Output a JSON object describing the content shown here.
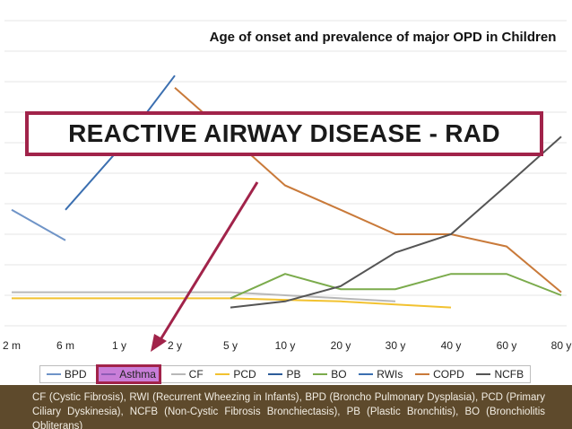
{
  "title": "Age of onset and prevalence of major OPD in Children",
  "callout": {
    "text": "REACTIVE AIRWAY DISEASE - RAD",
    "highlighted_series": "Asthma"
  },
  "footnote": "CF (Cystic Fibrosis), RWI (Recurrent Wheezing in Infants), BPD (Broncho Pulmonary Dysplasia), PCD (Primary Ciliary Dyskinesia), NCFB (Non-Cystic Fibrosis Bronchiectasis), PB (Plastic Bronchitis), BO (Bronchiolitis Obliterans)",
  "colors": {
    "accent": "#a1234a",
    "highlight": "#c97ed8",
    "footer_bg": "#5e4a2c"
  },
  "chart_data": {
    "type": "line",
    "categories": [
      "2 m",
      "6 m",
      "1 y",
      "2 y",
      "5 y",
      "10 y",
      "20 y",
      "30 y",
      "40 y",
      "60 y",
      "80 y"
    ],
    "grid": true,
    "legend_position": "bottom",
    "series": [
      {
        "name": "BPD",
        "color": "#6f94c7",
        "values": [
          38,
          28,
          null,
          null,
          null,
          null,
          null,
          null,
          null,
          null,
          null
        ]
      },
      {
        "name": "Asthma",
        "color": "#8e5cb5",
        "values": [
          null,
          null,
          null,
          null,
          null,
          null,
          null,
          null,
          null,
          null,
          null
        ]
      },
      {
        "name": "CF",
        "color": "#b8b8b8",
        "values": [
          11,
          11,
          11,
          11,
          11,
          10,
          9,
          8,
          null,
          null,
          null
        ]
      },
      {
        "name": "PCD",
        "color": "#f2c230",
        "values": [
          9,
          9,
          9,
          9,
          9,
          8.5,
          8,
          7,
          6,
          null,
          null
        ]
      },
      {
        "name": "PB",
        "color": "#2d5c99",
        "values": [
          null,
          null,
          null,
          null,
          null,
          null,
          null,
          null,
          null,
          null,
          null
        ]
      },
      {
        "name": "BO",
        "color": "#7bab4c",
        "values": [
          null,
          null,
          null,
          null,
          9,
          17,
          12,
          12,
          17,
          17,
          10
        ]
      },
      {
        "name": "RWIs",
        "color": "#3b6fb0",
        "values": [
          null,
          38,
          58,
          82,
          null,
          null,
          null,
          null,
          null,
          null,
          null
        ]
      },
      {
        "name": "COPD",
        "color": "#c97a3a",
        "values": [
          null,
          null,
          null,
          78,
          62,
          46,
          38,
          30,
          30,
          26,
          11
        ]
      },
      {
        "name": "NCFB",
        "color": "#555555",
        "values": [
          null,
          null,
          null,
          null,
          6,
          8,
          13,
          24,
          30,
          46,
          62
        ]
      }
    ]
  }
}
